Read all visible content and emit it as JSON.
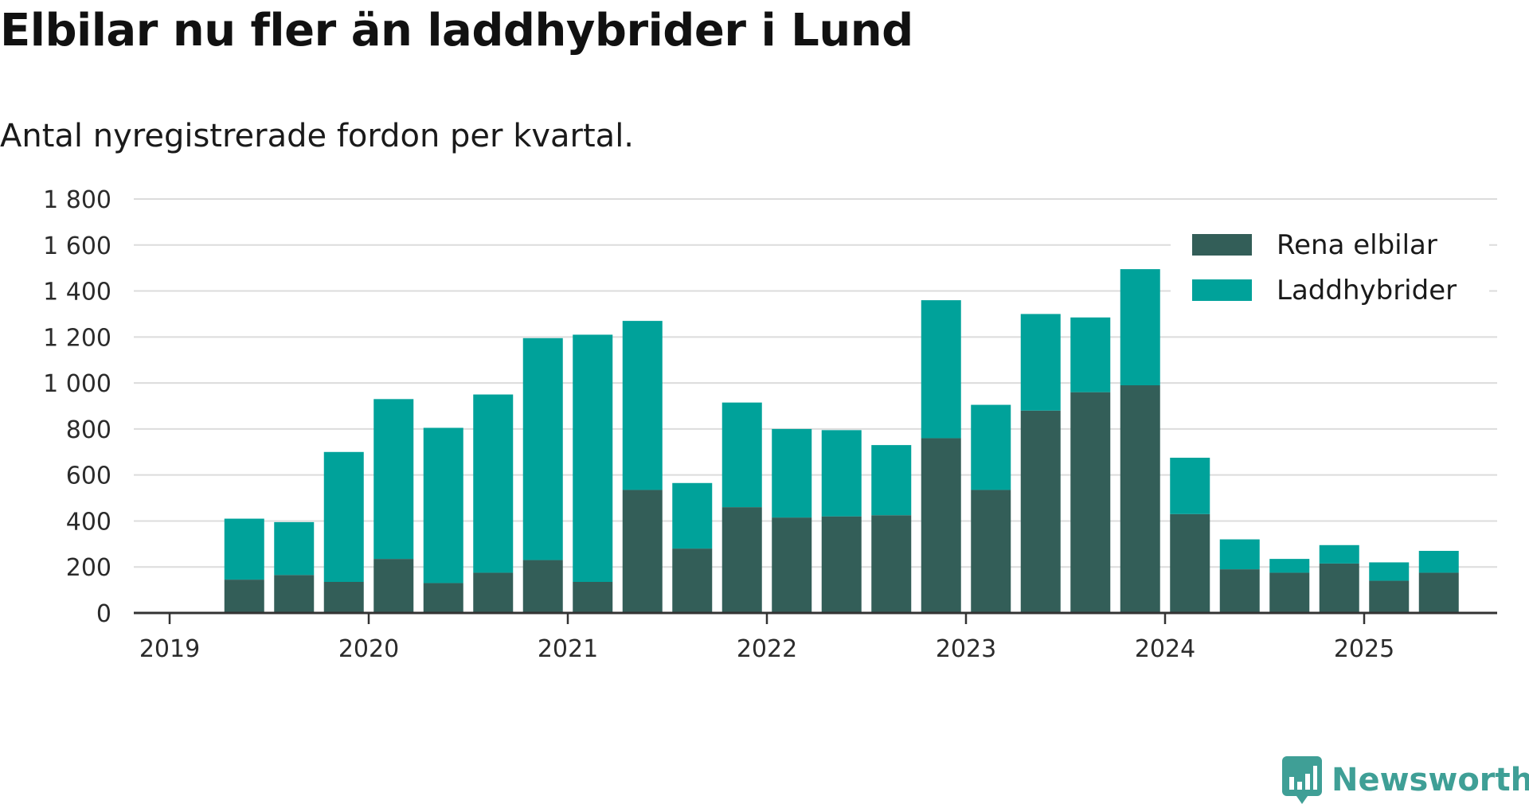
{
  "title": "Elbilar nu fler än laddhybrider i Lund",
  "subtitle": "Antal nyregistrerade fordon per kvartal.",
  "brand": "Newsworthy",
  "colors": {
    "elbilar": "#335e58",
    "laddhybrider": "#00a29a",
    "grid": "#dcdcdc",
    "axis": "#333333",
    "brand": "#3f9f96"
  },
  "chart_data": {
    "type": "bar",
    "stacked": true,
    "categories": [
      "2019 Q2",
      "2019 Q3",
      "2019 Q4",
      "2020 Q1",
      "2020 Q2",
      "2020 Q3",
      "2020 Q4",
      "2021 Q1",
      "2021 Q2",
      "2021 Q3",
      "2021 Q4",
      "2022 Q1",
      "2022 Q2",
      "2022 Q3",
      "2022 Q4",
      "2023 Q1",
      "2023 Q2",
      "2023 Q3",
      "2023 Q4",
      "2024 Q1",
      "2024 Q2",
      "2024 Q3",
      "2024 Q4",
      "2025 Q1",
      "2025 Q2"
    ],
    "series": [
      {
        "name": "Rena elbilar",
        "values": [
          145,
          165,
          135,
          235,
          130,
          175,
          230,
          135,
          535,
          280,
          460,
          415,
          420,
          425,
          760,
          535,
          880,
          960,
          990,
          430,
          190,
          175,
          215,
          140,
          175
        ]
      },
      {
        "name": "Laddhybrider",
        "values": [
          265,
          230,
          565,
          695,
          675,
          775,
          965,
          1075,
          735,
          285,
          455,
          385,
          375,
          305,
          600,
          370,
          420,
          325,
          505,
          245,
          130,
          60,
          80,
          80,
          95
        ]
      }
    ],
    "x_ticks": [
      "2019",
      "2020",
      "2021",
      "2022",
      "2023",
      "2024",
      "2025"
    ],
    "y_ticks": [
      "0",
      "200",
      "400",
      "600",
      "800",
      "1 000",
      "1 200",
      "1 400",
      "1 600",
      "1 800"
    ],
    "ylim": [
      0,
      1800
    ],
    "grid": true,
    "legend_position": "top-right"
  }
}
